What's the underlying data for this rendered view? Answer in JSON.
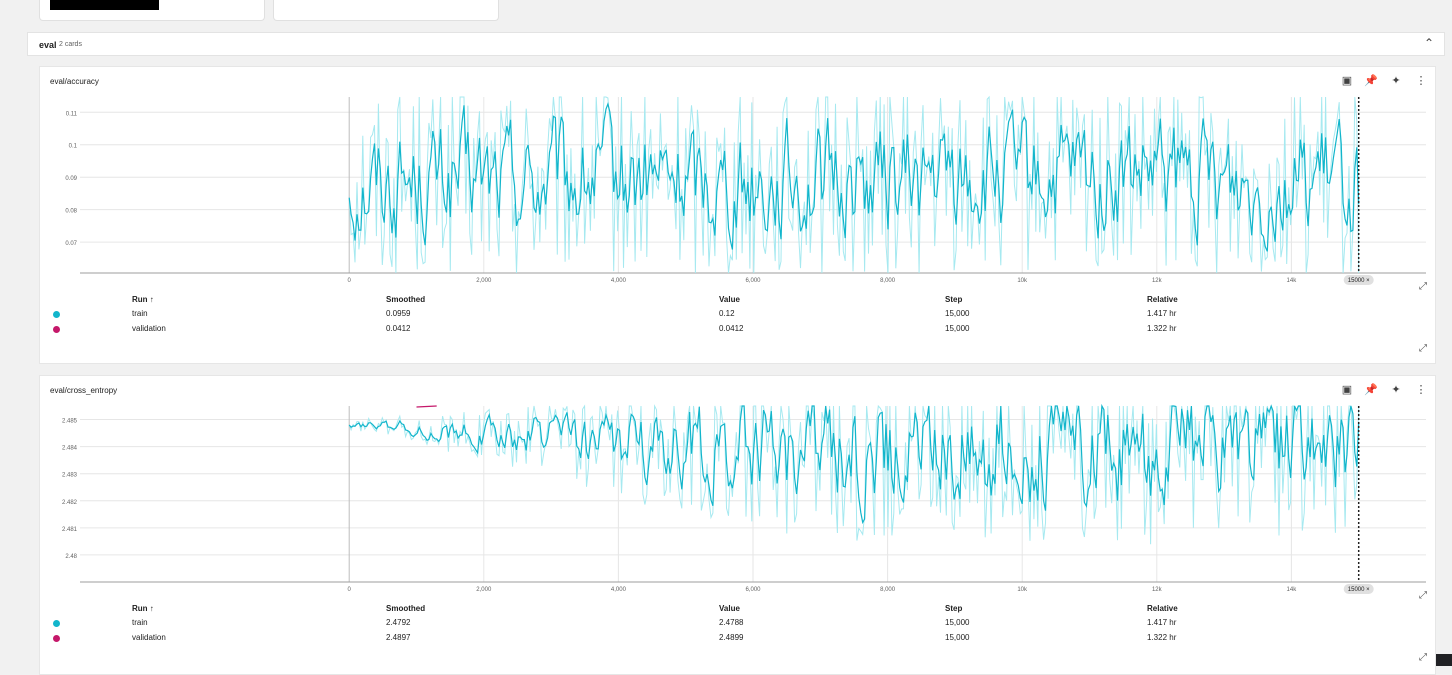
{
  "group": {
    "title": "eval",
    "count": "2 cards",
    "collapse_icon": "chevron-up-icon"
  },
  "table_headers": {
    "run": "Run ↑",
    "smoothed": "Smoothed",
    "value": "Value",
    "step": "Step",
    "relative": "Relative"
  },
  "colors": {
    "train": "#12b5cb",
    "train_raw": "#a6e9f0",
    "validation": "#c5186a",
    "grid": "#e6e6e6"
  },
  "step_marker": "15000 ×",
  "cards": [
    {
      "title": "eval/accuracy",
      "chart_data": {
        "type": "line",
        "x_ticks": [
          "0",
          "2,000",
          "4,000",
          "6,000",
          "8,000",
          "10k",
          "12k",
          "14k"
        ],
        "x_tick_values": [
          0,
          2000,
          4000,
          6000,
          8000,
          10000,
          12000,
          14000
        ],
        "y_ticks": [
          "0.11",
          "0.1",
          "0.09",
          "0.08",
          "0.07"
        ],
        "y_tick_values": [
          0.11,
          0.1,
          0.09,
          0.08,
          0.07
        ],
        "xlim": [
          -4000,
          16000
        ],
        "ylim": [
          0.0605,
          0.1147
        ],
        "series": [
          {
            "name": "train",
            "smoothed_last": 0.0959,
            "value_last": 0.12,
            "step_last": 15000
          }
        ]
      },
      "rows": [
        {
          "run": "train",
          "smoothed": "0.0959",
          "value": "0.12",
          "step": "15,000",
          "relative": "1.417 hr"
        },
        {
          "run": "validation",
          "smoothed": "0.0412",
          "value": "0.0412",
          "step": "15,000",
          "relative": "1.322 hr"
        }
      ]
    },
    {
      "title": "eval/cross_entropy",
      "chart_data": {
        "type": "line",
        "x_ticks": [
          "0",
          "2,000",
          "4,000",
          "6,000",
          "8,000",
          "10k",
          "12k",
          "14k"
        ],
        "x_tick_values": [
          0,
          2000,
          4000,
          6000,
          8000,
          10000,
          12000,
          14000
        ],
        "y_ticks": [
          "2.485",
          "2.484",
          "2.483",
          "2.482",
          "2.481",
          "2.48"
        ],
        "y_tick_values": [
          2.485,
          2.484,
          2.483,
          2.482,
          2.481,
          2.48
        ],
        "xlim": [
          -4000,
          16000
        ],
        "ylim": [
          2.479,
          2.4855
        ],
        "series": [
          {
            "name": "train",
            "smoothed_last": 2.4792,
            "value_last": 2.4788,
            "step_last": 15000
          }
        ]
      },
      "rows": [
        {
          "run": "train",
          "smoothed": "2.4792",
          "value": "2.4788",
          "step": "15,000",
          "relative": "1.417 hr"
        },
        {
          "run": "validation",
          "smoothed": "2.4897",
          "value": "2.4899",
          "step": "15,000",
          "relative": "1.322 hr"
        }
      ]
    }
  ]
}
